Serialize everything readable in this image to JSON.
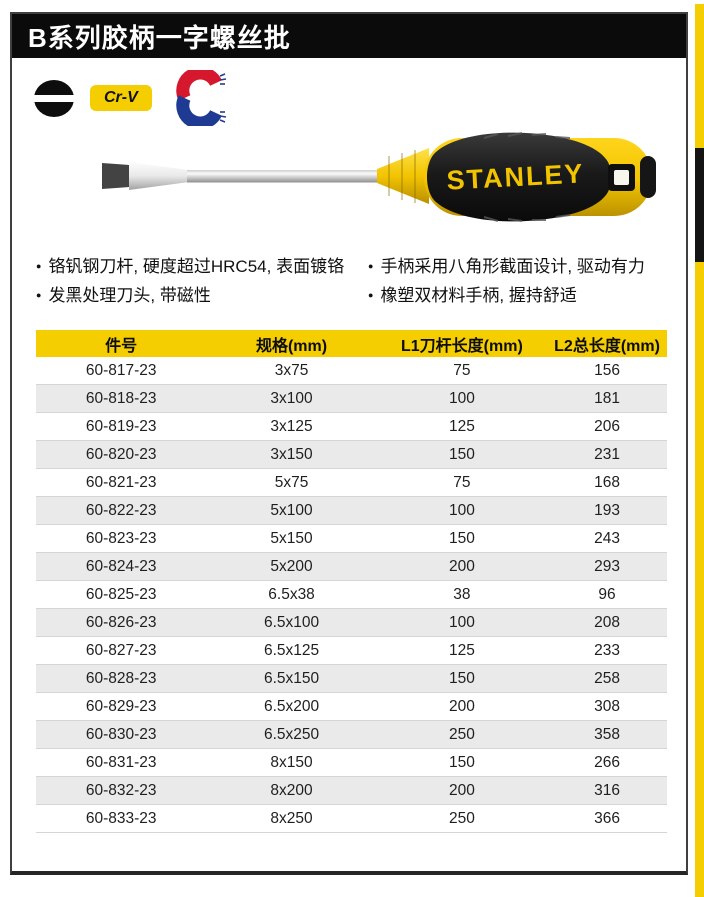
{
  "page": {
    "title": "B系列胶柄一字螺丝批"
  },
  "icons": {
    "slotted_tip": "slotted-screwdriver-tip-icon",
    "crv_label": "Cr-V",
    "magnet": "magnet-icon"
  },
  "product": {
    "brand_text": "STANLEY"
  },
  "features": {
    "left": [
      "铬钒钢刀杆, 硬度超过HRC54, 表面镀铬",
      "发黑处理刀头, 带磁性"
    ],
    "right": [
      "手柄采用八角形截面设计, 驱动有力",
      "橡塑双材料手柄, 握持舒适"
    ]
  },
  "table": {
    "headers": [
      "件号",
      "规格(mm)",
      "L1刀杆长度(mm)",
      "L2总长度(mm)"
    ],
    "rows": [
      [
        "60-817-23",
        "3x75",
        "75",
        "156"
      ],
      [
        "60-818-23",
        "3x100",
        "100",
        "181"
      ],
      [
        "60-819-23",
        "3x125",
        "125",
        "206"
      ],
      [
        "60-820-23",
        "3x150",
        "150",
        "231"
      ],
      [
        "60-821-23",
        "5x75",
        "75",
        "168"
      ],
      [
        "60-822-23",
        "5x100",
        "100",
        "193"
      ],
      [
        "60-823-23",
        "5x150",
        "150",
        "243"
      ],
      [
        "60-824-23",
        "5x200",
        "200",
        "293"
      ],
      [
        "60-825-23",
        "6.5x38",
        "38",
        "96"
      ],
      [
        "60-826-23",
        "6.5x100",
        "100",
        "208"
      ],
      [
        "60-827-23",
        "6.5x125",
        "125",
        "233"
      ],
      [
        "60-828-23",
        "6.5x150",
        "150",
        "258"
      ],
      [
        "60-829-23",
        "6.5x200",
        "200",
        "308"
      ],
      [
        "60-830-23",
        "6.5x250",
        "250",
        "358"
      ],
      [
        "60-831-23",
        "8x150",
        "150",
        "266"
      ],
      [
        "60-832-23",
        "8x200",
        "200",
        "316"
      ],
      [
        "60-833-23",
        "8x250",
        "250",
        "366"
      ]
    ]
  },
  "colors": {
    "stanley_yellow": "#F5CE02",
    "title_bar_black": "#0B0B0B",
    "magnet_red": "#D5182E",
    "magnet_blue": "#1F3A93",
    "row_alt_gray": "#EAEAEA"
  }
}
